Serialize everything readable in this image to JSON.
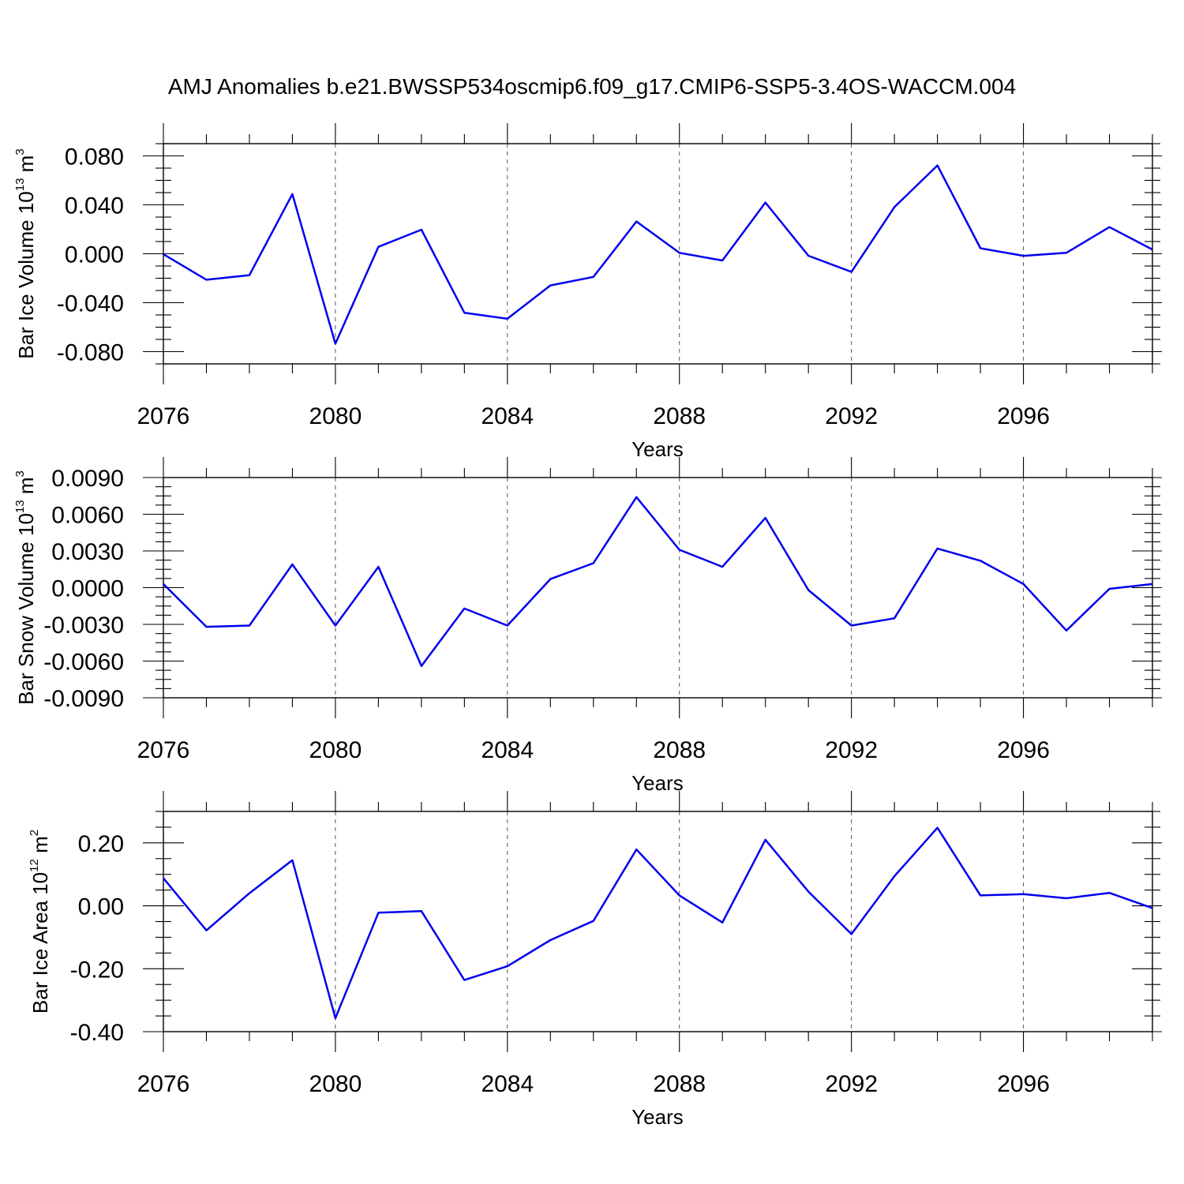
{
  "title": "AMJ Anomalies b.e21.BWSSP534oscmip6.f09_g17.CMIP6-SSP5-3.4OS-WACCM.004",
  "colors": {
    "series": "#0000ee",
    "axis": "#000000",
    "grid": "#555555"
  },
  "chart_data": [
    {
      "type": "line",
      "ylabel": {
        "main": "Bar Ice Volume 10",
        "exp": "13",
        "unit": " m",
        "unit_exp": "3"
      },
      "xlabel": "Years",
      "xlim": [
        2076,
        2099
      ],
      "ylim": [
        -0.09,
        0.09
      ],
      "yticks": [
        -0.08,
        -0.04,
        0.0,
        0.04,
        0.08
      ],
      "ytick_labels": [
        "-0.080",
        "-0.040",
        "0.000",
        "0.040",
        "0.080"
      ],
      "xticks": [
        2076,
        2080,
        2084,
        2088,
        2092,
        2096
      ],
      "xtick_labels": [
        "2076",
        "2080",
        "2084",
        "2088",
        "2092",
        "2096"
      ],
      "grid": "x-dashed",
      "series": [
        {
          "x": [
            2076,
            2077,
            2078,
            2079,
            2080,
            2081,
            2082,
            2083,
            2084,
            2085,
            2086,
            2087,
            2088,
            2089,
            2090,
            2091,
            2092,
            2093,
            2094,
            2095,
            2096,
            2097,
            2098,
            2099
          ],
          "values": [
            -0.0004,
            -0.0212,
            -0.0175,
            0.0488,
            -0.0735,
            0.0057,
            0.0197,
            -0.0482,
            -0.0531,
            -0.0259,
            -0.0189,
            0.0264,
            0.0008,
            -0.0055,
            0.0419,
            -0.0016,
            -0.0148,
            0.0381,
            0.0722,
            0.0045,
            -0.0017,
            0.0008,
            0.0218,
            0.0035
          ]
        }
      ]
    },
    {
      "type": "line",
      "ylabel": {
        "main": "Bar Snow Volume 10",
        "exp": "13",
        "unit": " m",
        "unit_exp": "3"
      },
      "xlabel": "Years",
      "xlim": [
        2076,
        2099
      ],
      "ylim": [
        -0.009,
        0.009
      ],
      "yticks": [
        -0.009,
        -0.006,
        -0.003,
        0.0,
        0.003,
        0.006,
        0.009
      ],
      "ytick_labels": [
        "-0.0090",
        "-0.0060",
        "-0.0030",
        "0.0000",
        "0.0030",
        "0.0060",
        "0.0090"
      ],
      "xticks": [
        2076,
        2080,
        2084,
        2088,
        2092,
        2096
      ],
      "xtick_labels": [
        "2076",
        "2080",
        "2084",
        "2088",
        "2092",
        "2096"
      ],
      "grid": "x-dashed",
      "series": [
        {
          "x": [
            2076,
            2077,
            2078,
            2079,
            2080,
            2081,
            2082,
            2083,
            2084,
            2085,
            2086,
            2087,
            2088,
            2089,
            2090,
            2091,
            2092,
            2093,
            2094,
            2095,
            2096,
            2097,
            2098,
            2099
          ],
          "values": [
            0.0003,
            -0.0032,
            -0.0031,
            0.0019,
            -0.0031,
            0.0017,
            -0.0064,
            -0.0017,
            -0.0031,
            0.0007,
            0.002,
            0.0074,
            0.0031,
            0.0017,
            0.0057,
            -0.0002,
            -0.0031,
            -0.0025,
            0.0032,
            0.0022,
            0.0003,
            -0.0035,
            -0.0001,
            0.0003
          ]
        }
      ]
    },
    {
      "type": "line",
      "ylabel": {
        "main": "Bar Ice Area 10",
        "exp": "12",
        "unit": " m",
        "unit_exp": "2"
      },
      "xlabel": "Years",
      "xlim": [
        2076,
        2099
      ],
      "ylim": [
        -0.4,
        0.3
      ],
      "yticks": [
        -0.4,
        -0.2,
        0.0,
        0.2
      ],
      "ytick_labels": [
        "-0.40",
        "-0.20",
        "0.00",
        "0.20"
      ],
      "xticks": [
        2076,
        2080,
        2084,
        2088,
        2092,
        2096
      ],
      "xtick_labels": [
        "2076",
        "2080",
        "2084",
        "2088",
        "2092",
        "2096"
      ],
      "grid": "x-dashed",
      "series": [
        {
          "x": [
            2076,
            2077,
            2078,
            2079,
            2080,
            2081,
            2082,
            2083,
            2084,
            2085,
            2086,
            2087,
            2088,
            2089,
            2090,
            2091,
            2092,
            2093,
            2094,
            2095,
            2096,
            2097,
            2098,
            2099
          ],
          "values": [
            0.088,
            -0.078,
            0.04,
            0.145,
            -0.357,
            -0.022,
            -0.017,
            -0.236,
            -0.192,
            -0.109,
            -0.048,
            0.179,
            0.033,
            -0.053,
            0.21,
            0.045,
            -0.09,
            0.094,
            0.248,
            0.033,
            0.037,
            0.024,
            0.041,
            -0.007
          ]
        }
      ]
    }
  ]
}
